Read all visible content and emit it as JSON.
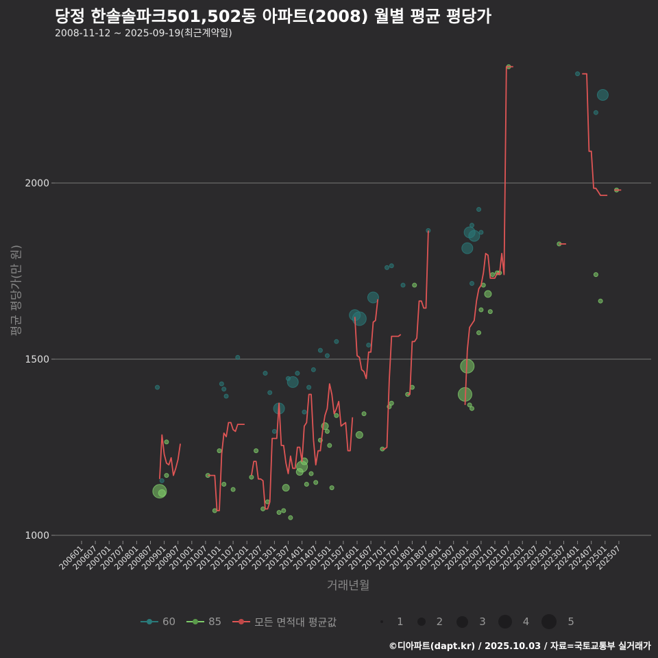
{
  "header": {
    "title": "당정 한솔솔파크501,502동 아파트(2008) 월별 평균 평당가",
    "subtitle": "2008-11-12 ~ 2025-09-19(최근계약일)"
  },
  "footer": {
    "credit": "©디아파트(dapt.kr) / 2025.10.03 / 자료=국토교통부 실거래가"
  },
  "legend": {
    "series": [
      {
        "label": "60",
        "color": "#2a7a7a"
      },
      {
        "label": "85",
        "color": "#7fcc6a"
      },
      {
        "label": "모든 면적대 평균값",
        "color": "#e05555"
      }
    ],
    "size_labels": [
      "1",
      "2",
      "3",
      "4",
      "5"
    ]
  },
  "chart_data": {
    "type": "line+scatter",
    "title": "당정 한솔솔파크501,502동 아파트(2008) 월별 평균 평당가",
    "subtitle": "2008-11-12 ~ 2025-09-19(최근계약일)",
    "xlabel": "거래년월",
    "ylabel": "평균 평당가(만 원)",
    "ylim": [
      900,
      2380
    ],
    "yticks": [
      1000,
      1500,
      2000
    ],
    "grid": true,
    "legend_position": "bottom",
    "x_ticks": [
      "200601",
      "200607",
      "200701",
      "200707",
      "200801",
      "200807",
      "200901",
      "200907",
      "201001",
      "201007",
      "201101",
      "201107",
      "201201",
      "201207",
      "201301",
      "201307",
      "201401",
      "201407",
      "201501",
      "201507",
      "201601",
      "201607",
      "201701",
      "201707",
      "201801",
      "201807",
      "201901",
      "201907",
      "202001",
      "202007",
      "202101",
      "202107",
      "202201",
      "202207",
      "202301",
      "202307",
      "202401",
      "202407",
      "202501",
      "202507"
    ],
    "series": [
      {
        "name": "모든 면적대 평균값",
        "type": "line",
        "color": "#e05555",
        "segments": [
          [
            [
              "200811",
              1160
            ],
            [
              "200812",
              1285
            ],
            [
              "200901",
              1230
            ],
            [
              "200902",
              1205
            ],
            [
              "200903",
              1200
            ],
            [
              "200904",
              1220
            ],
            [
              "200905",
              1170
            ],
            [
              "200906",
              1190
            ],
            [
              "200907",
              1215
            ],
            [
              "200908",
              1260
            ]
          ],
          [
            [
              "201008",
              1170
            ],
            [
              "201009",
              1170
            ],
            [
              "201010",
              1170
            ],
            [
              "201011",
              1170
            ],
            [
              "201012",
              1070
            ],
            [
              "201101",
              1070
            ],
            [
              "201102",
              1230
            ],
            [
              "201103",
              1290
            ],
            [
              "201104",
              1280
            ],
            [
              "201105",
              1320
            ],
            [
              "201106",
              1320
            ],
            [
              "201107",
              1300
            ],
            [
              "201108",
              1295
            ],
            [
              "201109",
              1315
            ],
            [
              "201110",
              1315
            ],
            [
              "201111",
              1315
            ],
            [
              "201112",
              1315
            ]
          ],
          [
            [
              "201203",
              1170
            ],
            [
              "201204",
              1210
            ],
            [
              "201205",
              1210
            ],
            [
              "201206",
              1160
            ],
            [
              "201207",
              1160
            ],
            [
              "201208",
              1155
            ],
            [
              "201209",
              1075
            ],
            [
              "201210",
              1075
            ],
            [
              "201211",
              1095
            ],
            [
              "201212",
              1275
            ],
            [
              "201301",
              1275
            ],
            [
              "201302",
              1275
            ],
            [
              "201303",
              1375
            ],
            [
              "201304",
              1255
            ],
            [
              "201305",
              1255
            ],
            [
              "201306",
              1205
            ],
            [
              "201307",
              1175
            ],
            [
              "201308",
              1225
            ],
            [
              "201309",
              1190
            ],
            [
              "201310",
              1190
            ],
            [
              "201311",
              1250
            ],
            [
              "201312",
              1250
            ],
            [
              "201401",
              1210
            ],
            [
              "201402",
              1310
            ],
            [
              "201403",
              1320
            ],
            [
              "201404",
              1400
            ],
            [
              "201405",
              1400
            ],
            [
              "201406",
              1270
            ],
            [
              "201407",
              1200
            ],
            [
              "201408",
              1240
            ],
            [
              "201409",
              1240
            ],
            [
              "201410",
              1300
            ],
            [
              "201411",
              1340
            ],
            [
              "201412",
              1360
            ],
            [
              "201501",
              1430
            ],
            [
              "201502",
              1400
            ],
            [
              "201503",
              1345
            ],
            [
              "201504",
              1360
            ],
            [
              "201505",
              1380
            ],
            [
              "201506",
              1310
            ],
            [
              "201507",
              1315
            ],
            [
              "201508",
              1320
            ],
            [
              "201509",
              1240
            ],
            [
              "201510",
              1240
            ],
            [
              "201511",
              1335
            ]
          ],
          [
            [
              "201512",
              1620
            ],
            [
              "201601",
              1510
            ],
            [
              "201602",
              1505
            ],
            [
              "201603",
              1470
            ],
            [
              "201604",
              1465
            ],
            [
              "201605",
              1445
            ],
            [
              "201606",
              1520
            ],
            [
              "201607",
              1520
            ],
            [
              "201608",
              1605
            ],
            [
              "201609",
              1610
            ],
            [
              "201610",
              1670
            ]
          ],
          [
            [
              "201612",
              1245
            ],
            [
              "201701",
              1245
            ],
            [
              "201702",
              1250
            ],
            [
              "201703",
              1440
            ],
            [
              "201704",
              1565
            ],
            [
              "201705",
              1565
            ],
            [
              "201706",
              1565
            ],
            [
              "201707",
              1565
            ],
            [
              "201708",
              1570
            ]
          ],
          [
            [
              "201711",
              1400
            ],
            [
              "201712",
              1400
            ],
            [
              "201801",
              1550
            ],
            [
              "201802",
              1550
            ],
            [
              "201803",
              1560
            ],
            [
              "201804",
              1665
            ],
            [
              "201805",
              1665
            ],
            [
              "201806",
              1645
            ],
            [
              "201807",
              1645
            ],
            [
              "201808",
              1865
            ]
          ],
          [
            [
              "201912",
              1370
            ],
            [
              "202001",
              1525
            ],
            [
              "202002",
              1590
            ],
            [
              "202003",
              1600
            ],
            [
              "202004",
              1610
            ],
            [
              "202005",
              1665
            ],
            [
              "202006",
              1700
            ],
            [
              "202007",
              1710
            ],
            [
              "202008",
              1745
            ],
            [
              "202009",
              1800
            ],
            [
              "202010",
              1795
            ],
            [
              "202011",
              1730
            ],
            [
              "202012",
              1730
            ],
            [
              "202101",
              1730
            ],
            [
              "202102",
              1745
            ],
            [
              "202103",
              1740
            ],
            [
              "202104",
              1800
            ],
            [
              "202105",
              1740
            ],
            [
              "202106",
              2330
            ],
            [
              "202107",
              2330
            ],
            [
              "202108",
              2330
            ],
            [
              "202109",
              2330
            ]
          ],
          [
            [
              "202305",
              1827
            ],
            [
              "202306",
              1827
            ],
            [
              "202307",
              1827
            ],
            [
              "202308",
              1827
            ]
          ],
          [
            [
              "202403",
              2310
            ],
            [
              "202404",
              2310
            ],
            [
              "202405",
              2310
            ],
            [
              "202406",
              2090
            ],
            [
              "202407",
              2090
            ],
            [
              "202408",
              1985
            ],
            [
              "202409",
              1985
            ],
            [
              "202410",
              1975
            ],
            [
              "202411",
              1965
            ],
            [
              "202412",
              1965
            ],
            [
              "202501",
              1965
            ],
            [
              "202502",
              1965
            ]
          ],
          [
            [
              "202505",
              1980
            ],
            [
              "202506",
              1980
            ],
            [
              "202507",
              1980
            ],
            [
              "202508",
              1980
            ]
          ]
        ]
      },
      {
        "name": "60",
        "type": "scatter",
        "color": "#2a7a7a",
        "points": [
          [
            "200810",
            1420,
            1
          ],
          [
            "200812",
            1155,
            1
          ],
          [
            "201102",
            1430,
            1
          ],
          [
            "201103",
            1415,
            1
          ],
          [
            "201104",
            1395,
            1
          ],
          [
            "201109",
            1505,
            1
          ],
          [
            "201209",
            1460,
            1
          ],
          [
            "201211",
            1405,
            1
          ],
          [
            "201301",
            1295,
            1
          ],
          [
            "201303",
            1360,
            3
          ],
          [
            "201307",
            1445,
            1
          ],
          [
            "201309",
            1435,
            3
          ],
          [
            "201311",
            1460,
            1
          ],
          [
            "201402",
            1350,
            1
          ],
          [
            "201404",
            1420,
            1
          ],
          [
            "201406",
            1470,
            1
          ],
          [
            "201409",
            1525,
            1
          ],
          [
            "201412",
            1510,
            1
          ],
          [
            "201504",
            1550,
            1
          ],
          [
            "201512",
            1625,
            3
          ],
          [
            "201602",
            1615,
            4
          ],
          [
            "201606",
            1540,
            1
          ],
          [
            "201608",
            1675,
            3
          ],
          [
            "201702",
            1760,
            1
          ],
          [
            "201704",
            1765,
            1
          ],
          [
            "201709",
            1710,
            1
          ],
          [
            "201808",
            1865,
            1
          ],
          [
            "202001",
            1815,
            3
          ],
          [
            "202002",
            1860,
            3
          ],
          [
            "202003",
            1880,
            1
          ],
          [
            "202004",
            1850,
            3
          ],
          [
            "202006",
            1925,
            1
          ],
          [
            "202007",
            1860,
            1
          ],
          [
            "202003",
            1715,
            1
          ],
          [
            "202401",
            2310,
            1
          ],
          [
            "202412",
            2250,
            3
          ],
          [
            "202409",
            2200,
            1
          ]
        ]
      },
      {
        "name": "85",
        "type": "scatter",
        "color": "#7fcc6a",
        "points": [
          [
            "200811",
            1125,
            4
          ],
          [
            "200812",
            1120,
            2
          ],
          [
            "200902",
            1265,
            1
          ],
          [
            "200902",
            1170,
            1
          ],
          [
            "201008",
            1170,
            1
          ],
          [
            "201011",
            1070,
            1
          ],
          [
            "201101",
            1240,
            1
          ],
          [
            "201103",
            1145,
            1
          ],
          [
            "201107",
            1130,
            1
          ],
          [
            "201203",
            1165,
            1
          ],
          [
            "201205",
            1240,
            1
          ],
          [
            "201208",
            1075,
            1
          ],
          [
            "201210",
            1095,
            1
          ],
          [
            "201303",
            1065,
            1
          ],
          [
            "201305",
            1070,
            1
          ],
          [
            "201306",
            1135,
            2
          ],
          [
            "201308",
            1050,
            1
          ],
          [
            "201312",
            1180,
            2
          ],
          [
            "201401",
            1195,
            3
          ],
          [
            "201402",
            1210,
            2
          ],
          [
            "201403",
            1145,
            1
          ],
          [
            "201405",
            1175,
            1
          ],
          [
            "201407",
            1150,
            1
          ],
          [
            "201409",
            1270,
            1
          ],
          [
            "201411",
            1310,
            2
          ],
          [
            "201412",
            1295,
            1
          ],
          [
            "201501",
            1255,
            1
          ],
          [
            "201502",
            1135,
            1
          ],
          [
            "201504",
            1340,
            1
          ],
          [
            "201602",
            1285,
            2
          ],
          [
            "201604",
            1345,
            1
          ],
          [
            "201612",
            1245,
            1
          ],
          [
            "201703",
            1365,
            1
          ],
          [
            "201704",
            1375,
            1
          ],
          [
            "201711",
            1400,
            1
          ],
          [
            "201801",
            1420,
            1
          ],
          [
            "201802",
            1710,
            1
          ],
          [
            "201912",
            1400,
            4
          ],
          [
            "202001",
            1480,
            4
          ],
          [
            "202002",
            1370,
            1
          ],
          [
            "202003",
            1360,
            1
          ],
          [
            "202006",
            1575,
            1
          ],
          [
            "202007",
            1640,
            1
          ],
          [
            "202008",
            1710,
            1
          ],
          [
            "202010",
            1685,
            2
          ],
          [
            "202011",
            1635,
            1
          ],
          [
            "202012",
            1740,
            1
          ],
          [
            "202102",
            1745,
            1
          ],
          [
            "202103",
            1745,
            1
          ],
          [
            "202107",
            2330,
            1
          ],
          [
            "202305",
            1827,
            1
          ],
          [
            "202409",
            1740,
            1
          ],
          [
            "202411",
            1665,
            1
          ],
          [
            "202506",
            1980,
            1
          ]
        ]
      }
    ]
  }
}
